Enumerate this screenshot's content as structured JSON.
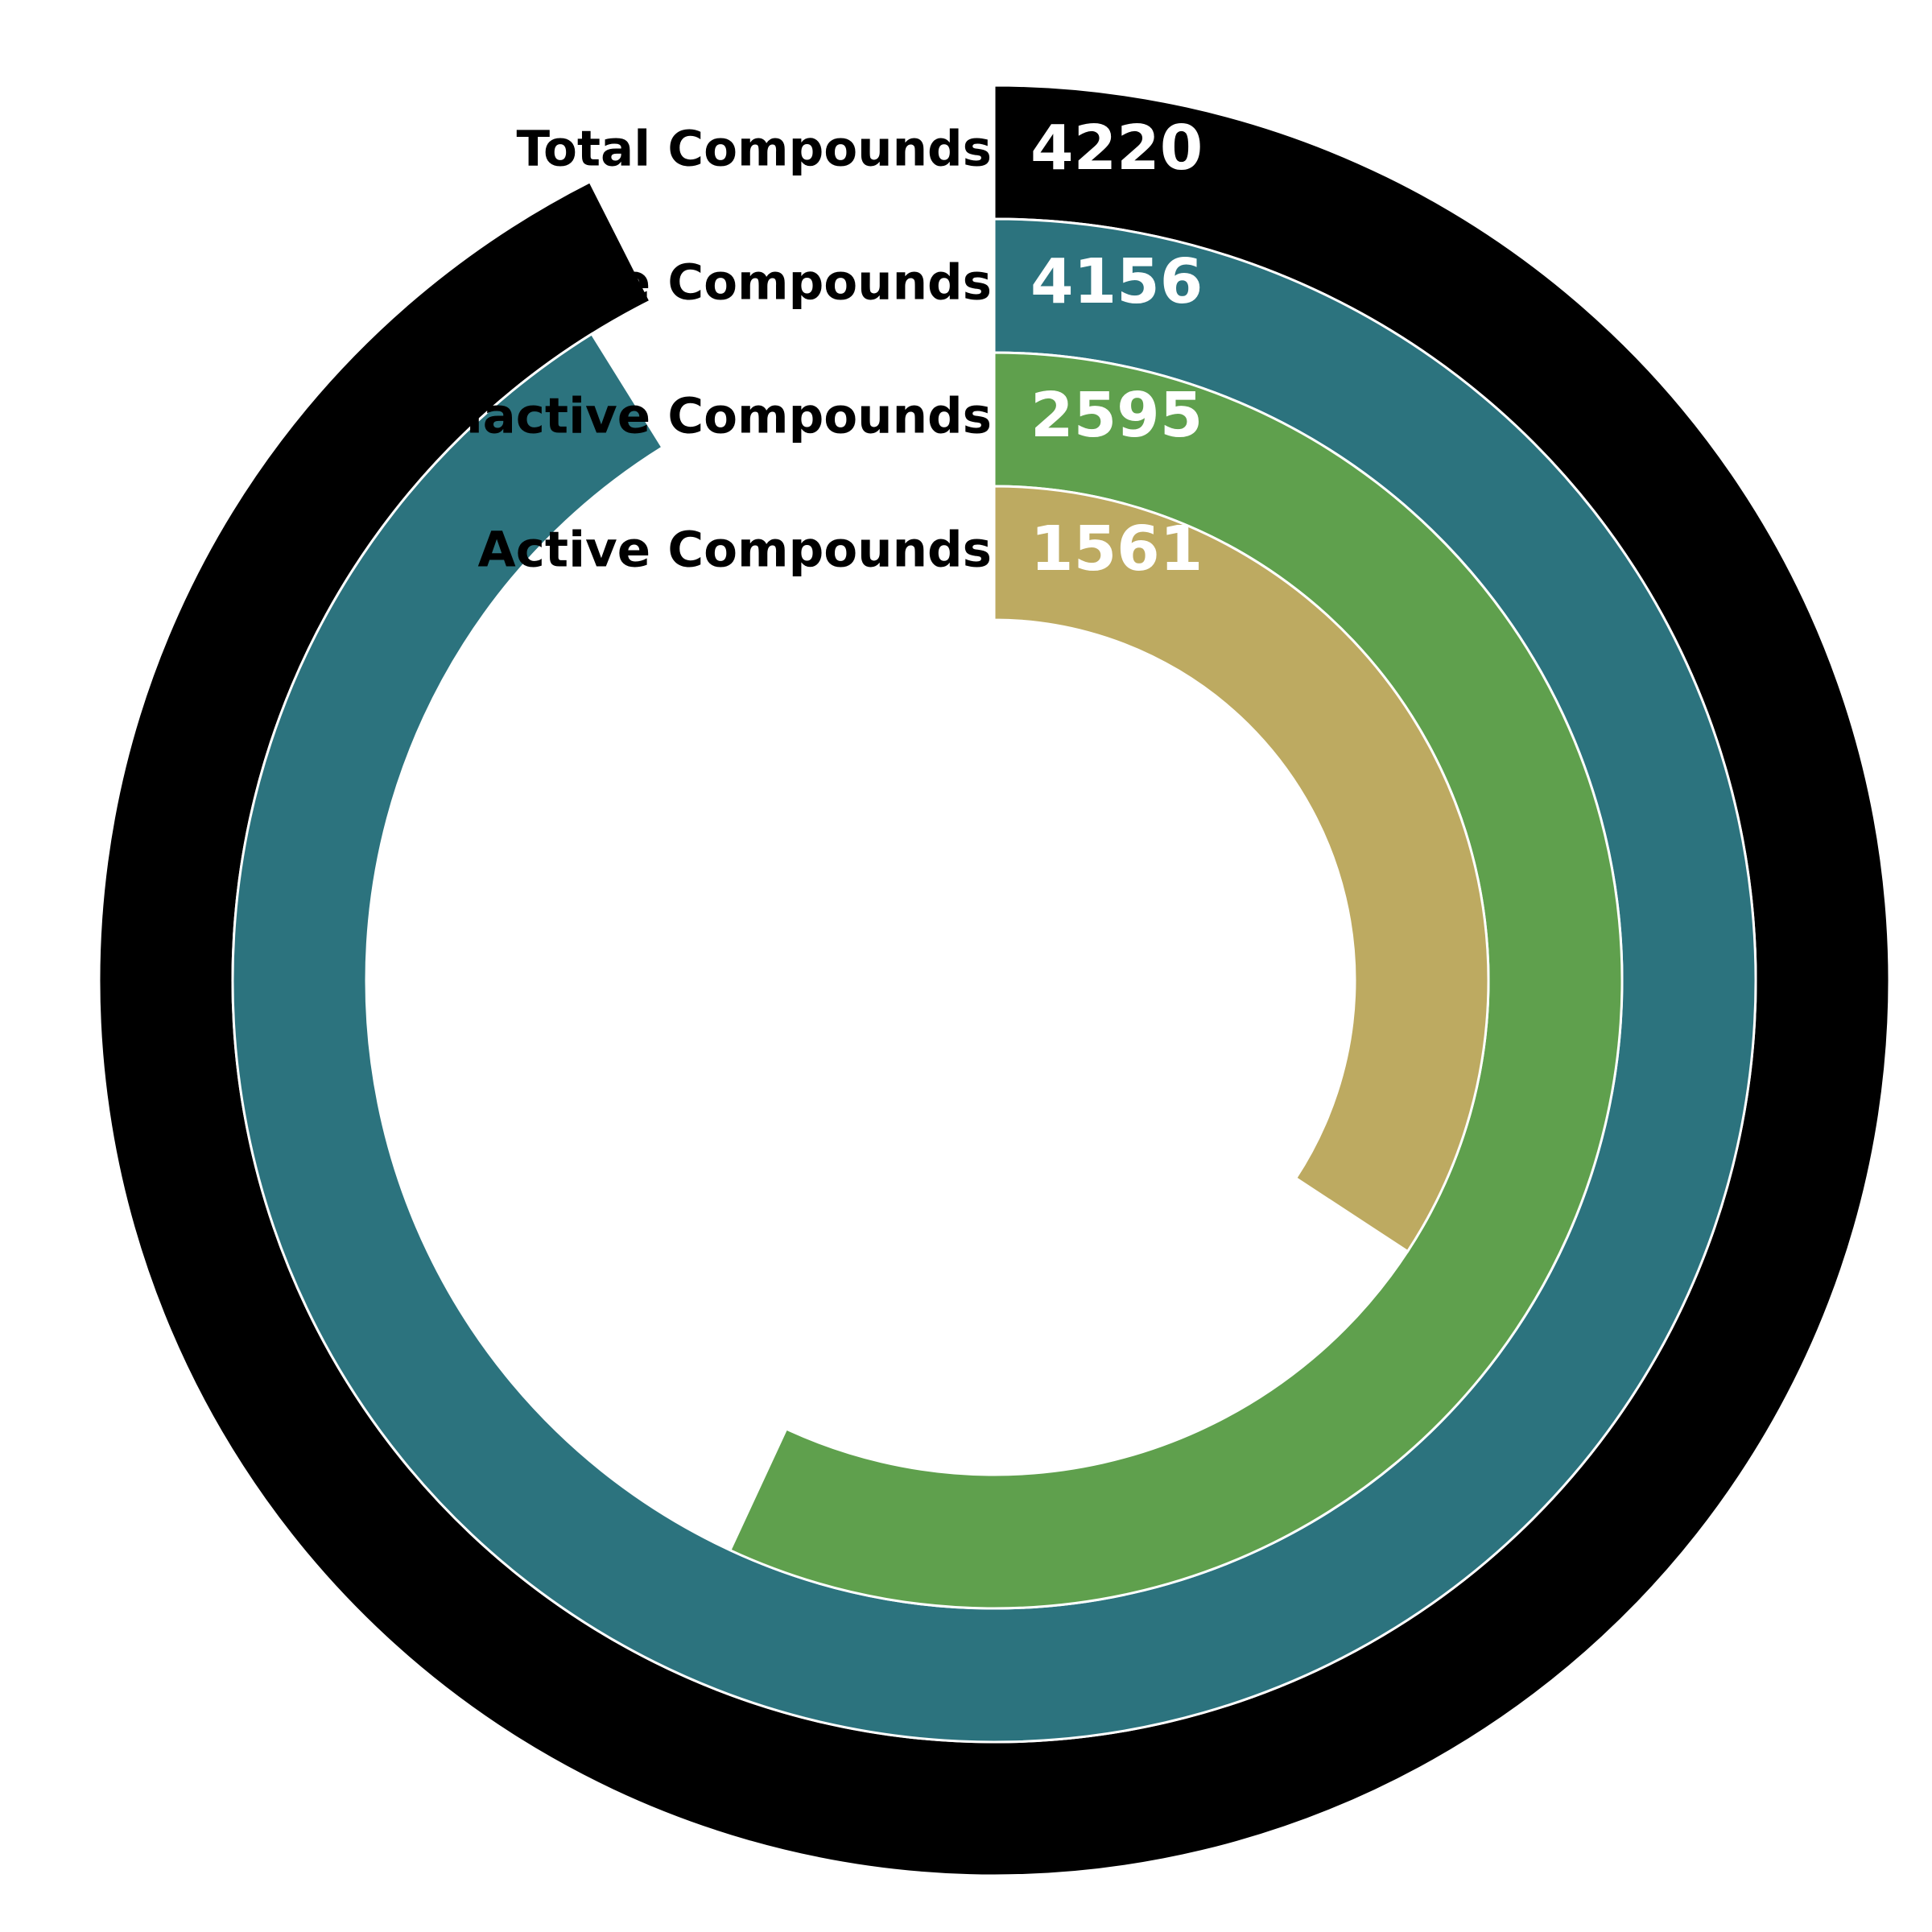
{
  "chart_data": {
    "type": "radial-bar",
    "categories": [
      "Total Compounds",
      "Unique Compounds",
      "Inactive Compounds",
      "Active Compounds"
    ],
    "values": [
      4220,
      4156,
      2595,
      1561
    ],
    "value_labels": [
      "4220",
      "4156",
      "2595",
      "1561"
    ],
    "full_circle_value": 4560,
    "start_angle": "top (12 o'clock)",
    "direction": "clockwise",
    "colors": [
      "#000000",
      "#2c737e",
      "#5fa04d",
      "#bdaa61"
    ],
    "separator_color": "#ffffff",
    "title": "",
    "legend": "none"
  }
}
